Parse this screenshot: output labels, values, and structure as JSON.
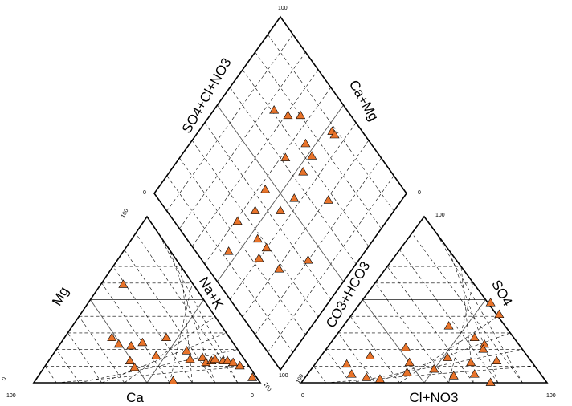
{
  "chart_data": {
    "type": "scatter",
    "subtype": "piper-diagram",
    "title": "",
    "grid": true,
    "marker": {
      "shape": "triangle",
      "color": "#e8732a"
    },
    "cation_triangle": {
      "axis_labels": {
        "bottom": "Ca",
        "left": "Mg",
        "right": "Na+K"
      },
      "tick_labels": {
        "bottom_left": "100",
        "bottom_right": "0",
        "left_bottom": "0",
        "top": "100",
        "right_bottom": "100"
      },
      "points": [
        {
          "Ca": 31,
          "Mg": 59
        },
        {
          "Ca": 51,
          "Mg": 13
        },
        {
          "Ca": 51,
          "Mg": 23
        },
        {
          "Ca": 46,
          "Mg": 22
        },
        {
          "Ca": 40,
          "Mg": 24
        },
        {
          "Ca": 38,
          "Mg": 16
        },
        {
          "Ca": 28,
          "Mg": 27
        },
        {
          "Ca": 24,
          "Mg": 14
        },
        {
          "Ca": 18,
          "Mg": 15
        },
        {
          "Ca": 18,
          "Mg": 12
        },
        {
          "Ca": 15,
          "Mg": 13
        },
        {
          "Ca": 13,
          "Mg": 14
        },
        {
          "Ca": 10,
          "Mg": 13
        },
        {
          "Ca": 8,
          "Mg": 13
        },
        {
          "Ca": 6,
          "Mg": 12
        },
        {
          "Ca": 4,
          "Mg": 10
        },
        {
          "Ca": 38,
          "Mg": 1
        },
        {
          "Ca": 2,
          "Mg": 3
        },
        {
          "Ca": 51,
          "Mg": 9
        },
        {
          "Ca": 23,
          "Mg": 19
        },
        {
          "Ca": 52,
          "Mg": 27
        }
      ]
    },
    "anion_triangle": {
      "axis_labels": {
        "bottom": "Cl+NO3",
        "left": "CO3+HCO3",
        "right": "SO4"
      },
      "tick_labels": {
        "bottom_left": "0",
        "bottom_right": "100",
        "left_bottom": "100",
        "top": "100"
      },
      "points": [
        {
          "Cl": 13,
          "SO4": 11
        },
        {
          "Cl": 18,
          "SO4": 5
        },
        {
          "Cl": 25,
          "SO4": 3
        },
        {
          "Cl": 31,
          "SO4": 2
        },
        {
          "Cl": 20,
          "SO4": 16
        },
        {
          "Cl": 32,
          "SO4": 21
        },
        {
          "Cl": 38,
          "SO4": 12
        },
        {
          "Cl": 40,
          "SO4": 6
        },
        {
          "Cl": 50,
          "SO4": 8
        },
        {
          "Cl": 52,
          "SO4": 15
        },
        {
          "Cl": 43,
          "SO4": 34
        },
        {
          "Cl": 60,
          "SO4": 4
        },
        {
          "Cl": 68,
          "SO4": 5
        },
        {
          "Cl": 63,
          "SO4": 23
        },
        {
          "Cl": 60,
          "SO4": 41
        },
        {
          "Cl": 53,
          "SO4": 48
        },
        {
          "Cl": 57,
          "SO4": 27
        },
        {
          "Cl": 63,
          "SO4": 12
        },
        {
          "Cl": 64,
          "SO4": 20
        },
        {
          "Cl": 73,
          "SO4": 13
        },
        {
          "Cl": 77,
          "SO4": 0
        }
      ]
    },
    "diamond": {
      "axis_labels": {
        "upper_left": "SO4+Cl+NO3",
        "upper_right": "Ca+Mg"
      },
      "tick_labels": {
        "top": "100",
        "left": "0",
        "right": "0",
        "bottom": "100"
      },
      "points": [
        {
          "X": 76,
          "Y": 71
        },
        {
          "X": 47,
          "Y": 88
        },
        {
          "X": 69,
          "Y": 75
        },
        {
          "X": 64,
          "Y": 80
        },
        {
          "X": 48,
          "Y": 73
        },
        {
          "X": 54,
          "Y": 74
        },
        {
          "X": 58,
          "Y": 62
        },
        {
          "X": 55,
          "Y": 35
        },
        {
          "X": 45,
          "Y": 45
        },
        {
          "X": 57,
          "Y": 45
        },
        {
          "X": 20,
          "Y": 42
        },
        {
          "X": 45,
          "Y": 88
        },
        {
          "X": 29,
          "Y": 67
        },
        {
          "X": 47,
          "Y": 65
        },
        {
          "X": 43,
          "Y": 54
        },
        {
          "X": 29,
          "Y": 28
        },
        {
          "X": 40,
          "Y": 29
        },
        {
          "X": 59,
          "Y": 25
        },
        {
          "X": 46,
          "Y": 28
        },
        {
          "X": 40,
          "Y": 23
        },
        {
          "X": 54,
          "Y": 13
        }
      ]
    }
  }
}
